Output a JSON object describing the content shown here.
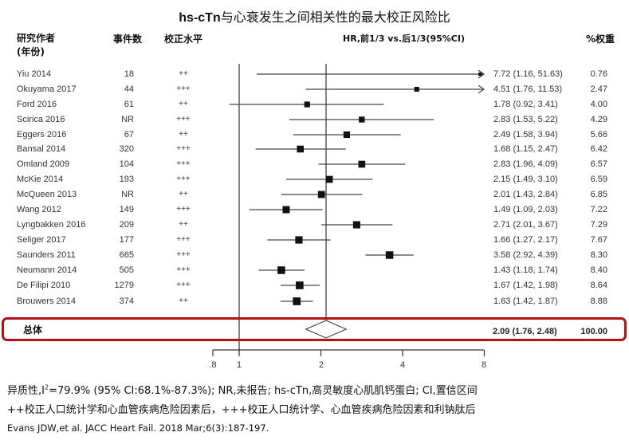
{
  "title": {
    "bold_part": "hs-cTn",
    "rest": "与心衰发生之间相关性的最大校正风险比"
  },
  "headers": {
    "study": "研究作者",
    "study_sub": "(年份)",
    "events": "事件数",
    "adjustment": "校正水平",
    "hr": "HR,前1/3 vs.后1/3(95%CI)",
    "weight": "%权重"
  },
  "rows": [
    {
      "study": "Yiu 2014",
      "events": "18",
      "adj": "++",
      "hr_text": "7.72 (1.16, 51.63)",
      "weight": "0.76"
    },
    {
      "study": "Okuyama 2017",
      "events": "44",
      "adj": "+++",
      "hr_text": "4.51 (1.76, 11.53)",
      "weight": "2.47"
    },
    {
      "study": "Ford 2016",
      "events": "61",
      "adj": "++",
      "hr_text": "1.78 (0.92, 3.41)",
      "weight": "4.00"
    },
    {
      "study": "Scirica 2016",
      "events": "NR",
      "adj": "+++",
      "hr_text": "2.83 (1.53, 5.22)",
      "weight": "4.29"
    },
    {
      "study": "Eggers 2016",
      "events": "67",
      "adj": "++",
      "hr_text": "2.49 (1.58, 3.94)",
      "weight": "5.66"
    },
    {
      "study": "Bansal 2014",
      "events": "320",
      "adj": "+++",
      "hr_text": "1.68 (1.15, 2.47)",
      "weight": "6.42"
    },
    {
      "study": "Omland 2009",
      "events": "104",
      "adj": "+++",
      "hr_text": "2.83 (1.96, 4.09)",
      "weight": "6.57"
    },
    {
      "study": "McKie 2014",
      "events": "193",
      "adj": "+++",
      "hr_text": "2.15 (1.49, 3.10)",
      "weight": "6.59"
    },
    {
      "study": "McQueen 2013",
      "events": "NR",
      "adj": "++",
      "hr_text": "2.01 (1.43, 2.84)",
      "weight": "6.85"
    },
    {
      "study": "Wang 2012",
      "events": "149",
      "adj": "+++",
      "hr_text": "1.49 (1.09, 2.03)",
      "weight": "7.22"
    },
    {
      "study": "Lyngbakken 2016",
      "events": "209",
      "adj": "++",
      "hr_text": "2.71 (2.01, 3.67)",
      "weight": "7.29"
    },
    {
      "study": "Seliger 2017",
      "events": "177",
      "adj": "+++",
      "hr_text": "1.66 (1.27, 2.17)",
      "weight": "7.67"
    },
    {
      "study": "Saunders 2011",
      "events": "665",
      "adj": "+++",
      "hr_text": "3.58 (2.92, 4.39)",
      "weight": "8.30"
    },
    {
      "study": "Neumann 2014",
      "events": "505",
      "adj": "+++",
      "hr_text": "1.43 (1.18, 1.74)",
      "weight": "8.40"
    },
    {
      "study": "De Filipi 2010",
      "events": "1279",
      "adj": "+++",
      "hr_text": "1.67 (1.42, 1.98)",
      "weight": "8.64"
    },
    {
      "study": "Brouwers 2014",
      "events": "374",
      "adj": "++",
      "hr_text": "1.63 (1.42, 1.87)",
      "weight": "8.88"
    }
  ],
  "overall": {
    "label": "总体",
    "hr_text": "2.09 (1.76, 2.48)",
    "weight": "100.00"
  },
  "axis": {
    "ticks": [
      ".8",
      "1",
      "2",
      "4",
      "8"
    ]
  },
  "footnotes": {
    "line1_pre": "异质性,I",
    "line1_sup": "2",
    "line1_post": "=79.9% (95% CI:68.1%-87.3%);  NR,未报告; hs-cTn,高灵敏度心肌肌钙蛋白; CI,置信区间",
    "line2": "++校正人口统计学和心血管疾病危险因素后，+++校正人口统计学、心血管疾病危险因素和利钠肽后",
    "citation": "Evans JDW,et  al. JACC Heart  Fail. 2018 Mar;6(3):187-197."
  },
  "colors": {
    "highlight_box": "#b01217",
    "marker": "#111111",
    "line": "#444444"
  },
  "chart_data": {
    "type": "forest",
    "title": "hs-cTn与心衰发生之间相关性的最大校正风险比",
    "xlabel": "HR,前1/3 vs.后1/3(95%CI)",
    "xscale": "log",
    "xlim": [
      0.8,
      8
    ],
    "xticks": [
      0.8,
      1,
      2,
      4,
      8
    ],
    "null_line": 1,
    "studies": [
      {
        "name": "Yiu 2014",
        "events": "18",
        "adjustment": "++",
        "hr": 7.72,
        "lo": 1.16,
        "hi": 51.63,
        "weight": 0.76
      },
      {
        "name": "Okuyama 2017",
        "events": "44",
        "adjustment": "+++",
        "hr": 4.51,
        "lo": 1.76,
        "hi": 11.53,
        "weight": 2.47
      },
      {
        "name": "Ford 2016",
        "events": "61",
        "adjustment": "++",
        "hr": 1.78,
        "lo": 0.92,
        "hi": 3.41,
        "weight": 4.0
      },
      {
        "name": "Scirica 2016",
        "events": "NR",
        "adjustment": "+++",
        "hr": 2.83,
        "lo": 1.53,
        "hi": 5.22,
        "weight": 4.29
      },
      {
        "name": "Eggers 2016",
        "events": "67",
        "adjustment": "++",
        "hr": 2.49,
        "lo": 1.58,
        "hi": 3.94,
        "weight": 5.66
      },
      {
        "name": "Bansal 2014",
        "events": "320",
        "adjustment": "+++",
        "hr": 1.68,
        "lo": 1.15,
        "hi": 2.47,
        "weight": 6.42
      },
      {
        "name": "Omland 2009",
        "events": "104",
        "adjustment": "+++",
        "hr": 2.83,
        "lo": 1.96,
        "hi": 4.09,
        "weight": 6.57
      },
      {
        "name": "McKie 2014",
        "events": "193",
        "adjustment": "+++",
        "hr": 2.15,
        "lo": 1.49,
        "hi": 3.1,
        "weight": 6.59
      },
      {
        "name": "McQueen 2013",
        "events": "NR",
        "adjustment": "++",
        "hr": 2.01,
        "lo": 1.43,
        "hi": 2.84,
        "weight": 6.85
      },
      {
        "name": "Wang 2012",
        "events": "149",
        "adjustment": "+++",
        "hr": 1.49,
        "lo": 1.09,
        "hi": 2.03,
        "weight": 7.22
      },
      {
        "name": "Lyngbakken 2016",
        "events": "209",
        "adjustment": "++",
        "hr": 2.71,
        "lo": 2.01,
        "hi": 3.67,
        "weight": 7.29
      },
      {
        "name": "Seliger 2017",
        "events": "177",
        "adjustment": "+++",
        "hr": 1.66,
        "lo": 1.27,
        "hi": 2.17,
        "weight": 7.67
      },
      {
        "name": "Saunders 2011",
        "events": "665",
        "adjustment": "+++",
        "hr": 3.58,
        "lo": 2.92,
        "hi": 4.39,
        "weight": 8.3
      },
      {
        "name": "Neumann 2014",
        "events": "505",
        "adjustment": "+++",
        "hr": 1.43,
        "lo": 1.18,
        "hi": 1.74,
        "weight": 8.4
      },
      {
        "name": "De Filipi 2010",
        "events": "1279",
        "adjustment": "+++",
        "hr": 1.67,
        "lo": 1.42,
        "hi": 1.98,
        "weight": 8.64
      },
      {
        "name": "Brouwers 2014",
        "events": "374",
        "adjustment": "++",
        "hr": 1.63,
        "lo": 1.42,
        "hi": 1.87,
        "weight": 8.88
      }
    ],
    "overall": {
      "name": "总体",
      "hr": 2.09,
      "lo": 1.76,
      "hi": 2.48,
      "weight": 100.0
    }
  }
}
